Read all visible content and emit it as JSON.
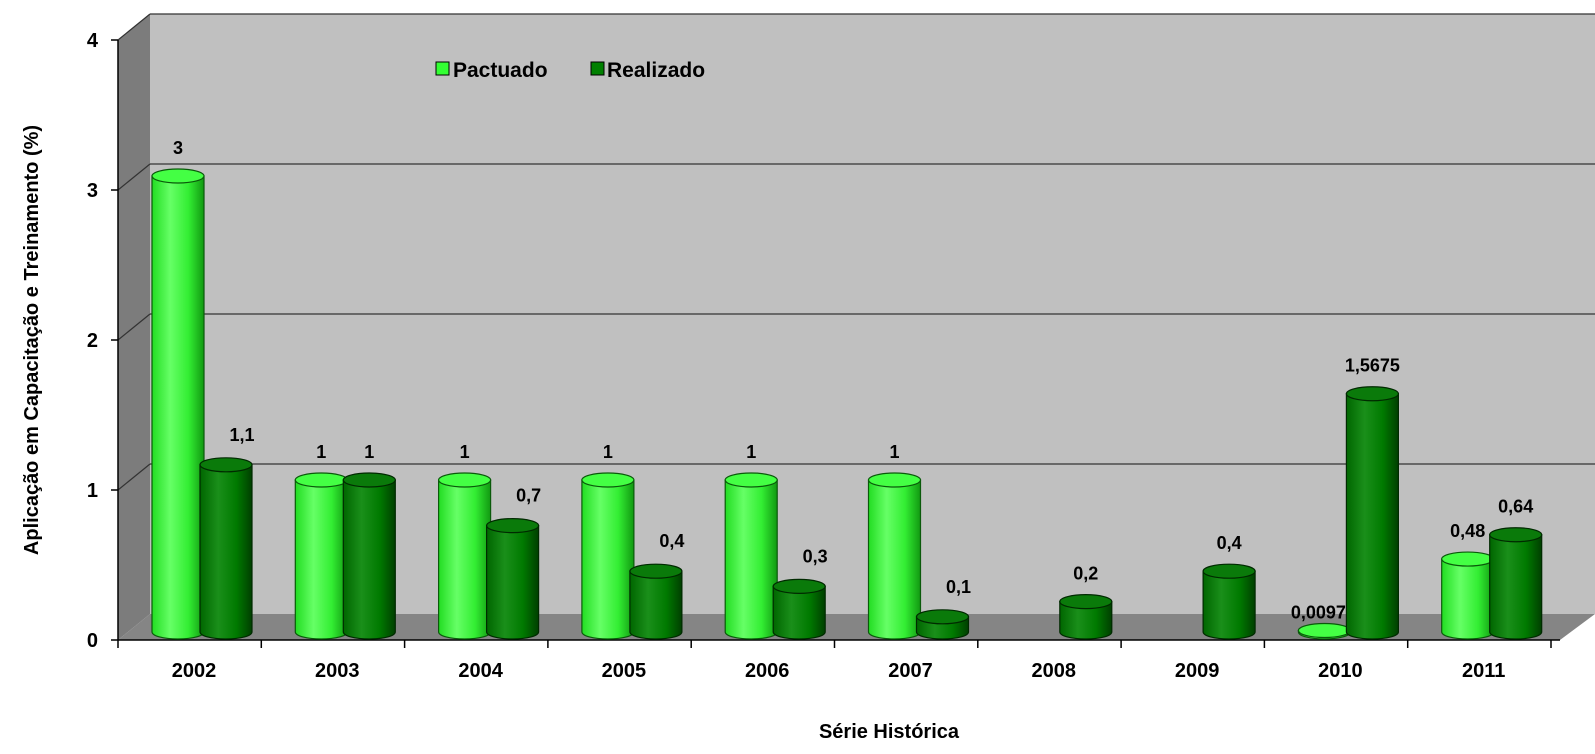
{
  "chart_data": {
    "type": "bar",
    "title": "",
    "xlabel": "Série Histórica",
    "ylabel": "Aplicação em Capacitação  e Treinamento  (%)",
    "ylim": [
      0,
      4
    ],
    "yticks": [
      "0",
      "1",
      "2",
      "3",
      "4"
    ],
    "categories": [
      "2002",
      "2003",
      "2004",
      "2005",
      "2006",
      "2007",
      "2008",
      "2009",
      "2010",
      "2011"
    ],
    "series": [
      {
        "name": "Pactuado",
        "color": "#33ff33",
        "values": [
          3,
          1,
          1,
          1,
          1,
          1,
          null,
          null,
          0.0097,
          0.48
        ],
        "labels": [
          "3",
          "1",
          "1",
          "1",
          "1",
          "1",
          "",
          "",
          "0,0097",
          "0,48"
        ]
      },
      {
        "name": "Realizado",
        "color": "#008000",
        "values": [
          1.1,
          1,
          0.7,
          0.4,
          0.3,
          0.1,
          0.2,
          0.4,
          1.5675,
          0.64
        ],
        "labels": [
          "1,1",
          "1",
          "0,7",
          "0,4",
          "0,3",
          "0,1",
          "0,2",
          "0,4",
          "1,5675",
          "0,64"
        ]
      }
    ],
    "legend_position": "top-left",
    "grid": true,
    "style": "3d-cylinder"
  }
}
